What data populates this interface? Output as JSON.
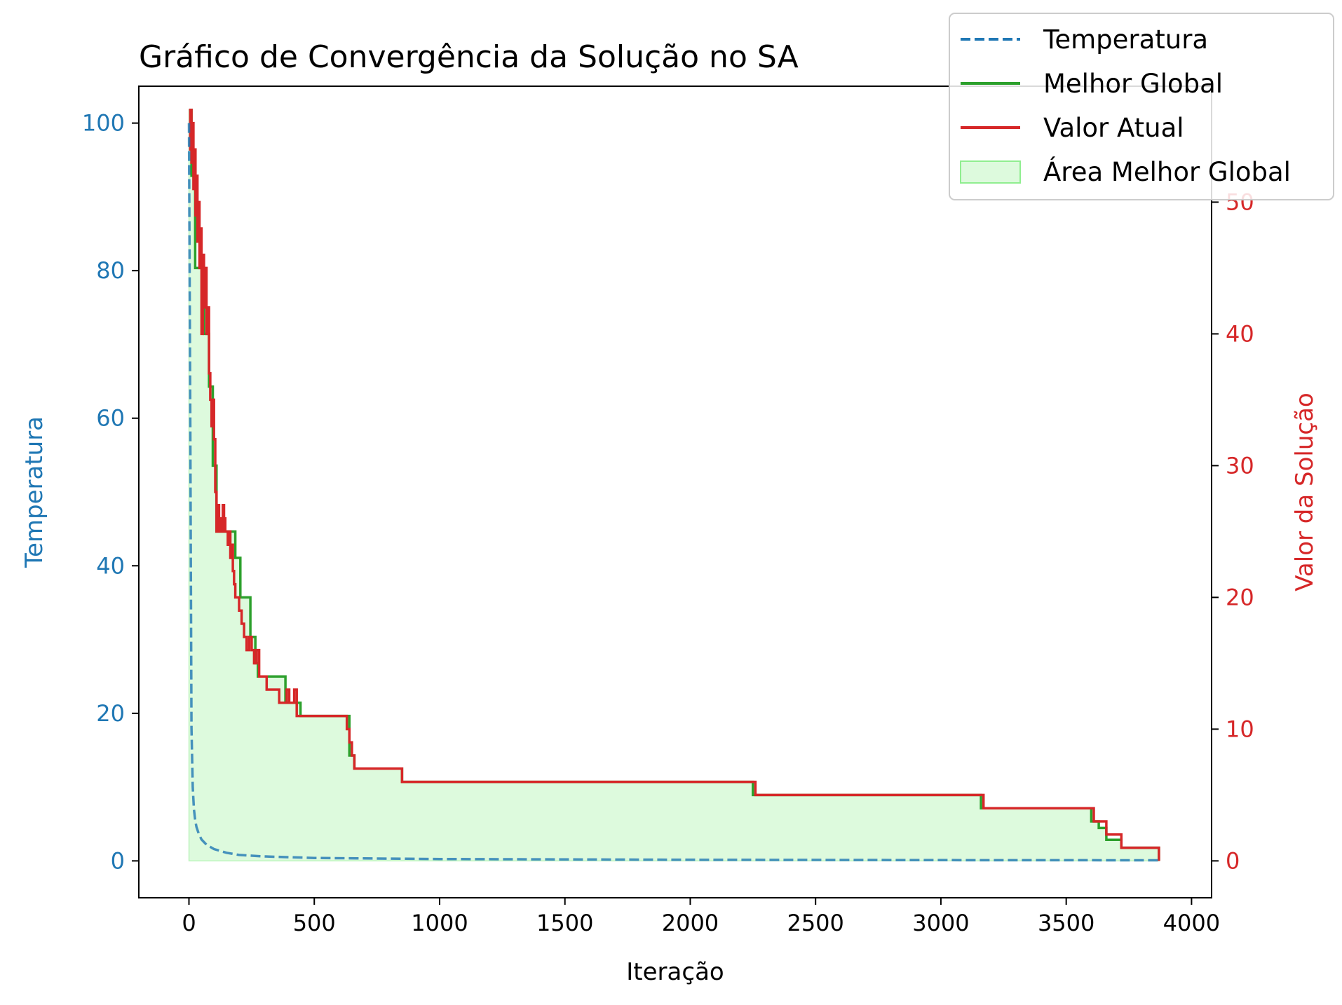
{
  "chart_data": {
    "type": "line",
    "title": "Gráfico de Convergência da Solução no SA",
    "xlabel": "Iteração",
    "ylabel_left": "Temperatura",
    "ylabel_right": "Valor da Solução",
    "xlim": [
      -200,
      4080
    ],
    "ylim_left": [
      -5,
      105
    ],
    "ylim_right": [
      -2.8,
      58.8
    ],
    "x_ticks": [
      0,
      500,
      1000,
      1500,
      2000,
      2500,
      3000,
      3500,
      4000
    ],
    "x_tick_labels": [
      "0",
      "500",
      "1000",
      "1500",
      "2000",
      "2500",
      "3000",
      "3500",
      "4000"
    ],
    "y_left_ticks": [
      0,
      20,
      40,
      60,
      80,
      100
    ],
    "y_left_tick_labels": [
      "0",
      "20",
      "40",
      "60",
      "80",
      "100"
    ],
    "y_right_ticks": [
      0,
      10,
      20,
      30,
      40,
      50
    ],
    "y_right_tick_labels": [
      "0",
      "10",
      "20",
      "30",
      "40",
      "50"
    ],
    "grid": false,
    "legend_position": "top-right",
    "colors": {
      "temperatura": "#1f77b4",
      "melhor_global": "#2ca02c",
      "valor_atual": "#d62728",
      "area": "#90ee90",
      "left_axis_text": "#1f77b4",
      "right_axis_text": "#d62728"
    },
    "series": [
      {
        "name": "Temperatura",
        "axis": "left",
        "style": "dashed",
        "x": [
          0,
          5,
          10,
          15,
          20,
          25,
          30,
          40,
          50,
          70,
          100,
          150,
          200,
          300,
          500,
          1000,
          2000,
          3000,
          3880
        ],
        "y": [
          100,
          62,
          18,
          10,
          7,
          5.5,
          4.6,
          3.6,
          2.9,
          2.2,
          1.6,
          1.1,
          0.8,
          0.6,
          0.4,
          0.25,
          0.15,
          0.1,
          0.08
        ]
      },
      {
        "name": "Melhor Global",
        "axis": "right",
        "style": "solid",
        "x": [
          0,
          10,
          25,
          40,
          60,
          80,
          95,
          110,
          125,
          170,
          185,
          205,
          245,
          265,
          275,
          300,
          385,
          415,
          445,
          640,
          660,
          850,
          2250,
          3160,
          3600,
          3630,
          3660,
          3720,
          3870,
          3870
        ],
        "y": [
          57,
          52,
          45,
          45,
          40,
          36,
          30,
          25,
          25,
          25,
          23,
          20,
          17,
          15,
          14,
          14,
          12,
          12,
          11,
          8,
          7,
          6,
          5,
          4,
          3,
          2.5,
          1.6,
          1,
          1,
          0
        ]
      },
      {
        "name": "Valor Atual",
        "axis": "right",
        "style": "solid",
        "x": [
          0,
          5,
          10,
          14,
          18,
          22,
          26,
          30,
          34,
          38,
          42,
          46,
          50,
          55,
          60,
          65,
          70,
          75,
          80,
          85,
          90,
          95,
          100,
          105,
          110,
          115,
          120,
          125,
          130,
          135,
          140,
          145,
          150,
          155,
          160,
          165,
          170,
          175,
          180,
          185,
          190,
          200,
          210,
          220,
          230,
          240,
          250,
          260,
          270,
          280,
          290,
          300,
          310,
          330,
          360,
          390,
          400,
          410,
          420,
          430,
          440,
          460,
          500,
          560,
          620,
          630,
          640,
          650,
          660,
          700,
          800,
          850,
          1200,
          1800,
          2250,
          2260,
          2600,
          3000,
          3160,
          3170,
          3600,
          3610,
          3650,
          3660,
          3710,
          3720,
          3860,
          3870
        ],
        "y": [
          54,
          57,
          53,
          56,
          51,
          54,
          49,
          52,
          47,
          50,
          45,
          48,
          40,
          46,
          42,
          45,
          40,
          42,
          37,
          35,
          33,
          35,
          32,
          28,
          25,
          27,
          25,
          26,
          25,
          27,
          26,
          25,
          25,
          24,
          25,
          23,
          24,
          22,
          21,
          20,
          20,
          19,
          18,
          17,
          16,
          17,
          16,
          15,
          16,
          14,
          14,
          14,
          13,
          13,
          12,
          13,
          12,
          12,
          13,
          11,
          11,
          11,
          11,
          11,
          11,
          10,
          9,
          8,
          7,
          7,
          7,
          6,
          6,
          6,
          6,
          5,
          5,
          5,
          5,
          4,
          4,
          3,
          3,
          2,
          2,
          1,
          1,
          0
        ]
      }
    ],
    "area": {
      "name": "Área Melhor Global",
      "axis": "right",
      "fill_opacity": 0.3
    }
  }
}
